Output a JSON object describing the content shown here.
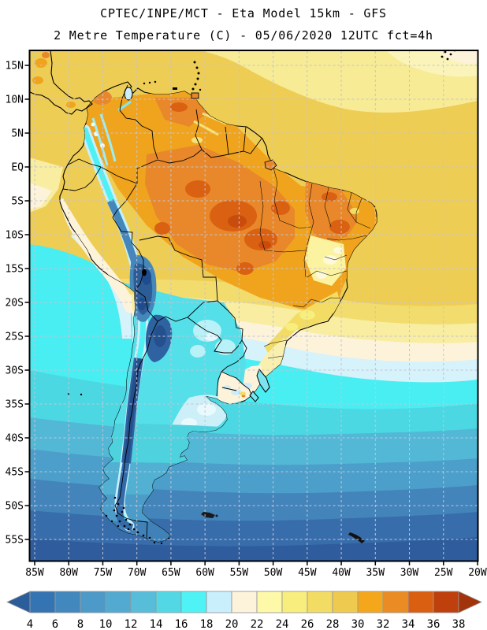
{
  "header": {
    "line1": "CPTEC/INPE/MCT -  Eta Model 15km - GFS",
    "line2": "2 Metre Temperature (C) - 05/06/2020 12UTC fct=4h"
  },
  "axes": {
    "lat": [
      "15N",
      "10N",
      "5N",
      "EQ",
      "5S",
      "10S",
      "15S",
      "20S",
      "25S",
      "30S",
      "35S",
      "40S",
      "45S",
      "50S",
      "55S"
    ],
    "lon": [
      "85W",
      "80W",
      "75W",
      "70W",
      "65W",
      "60W",
      "55W",
      "50W",
      "45W",
      "40W",
      "35W",
      "30W",
      "25W",
      "20W"
    ]
  },
  "colorbar": {
    "unit": "C",
    "tick_labels": [
      "4",
      "6",
      "8",
      "10",
      "12",
      "14",
      "16",
      "18",
      "20",
      "22",
      "24",
      "26",
      "28",
      "30",
      "32",
      "34",
      "36",
      "38"
    ],
    "segment_colors": [
      "#3474b3",
      "#4287bd",
      "#4d9ac9",
      "#52aad0",
      "#57bdd9",
      "#52d8e4",
      "#4ff2f5",
      "#c8effb",
      "#fdf3da",
      "#fdf9a8",
      "#f8ee7e",
      "#f3dc63",
      "#eeca4e",
      "#f4a71b",
      "#ea8c23",
      "#da5f10",
      "#bf400c"
    ],
    "arrow_left_color": "#2b5d9b",
    "arrow_right_color": "#a2330a",
    "outline_color": "#999999"
  },
  "map_style": {
    "grid_color": "#c5c3d2",
    "frame_color": "#000000",
    "ocean_base_color": "#eecd55"
  }
}
